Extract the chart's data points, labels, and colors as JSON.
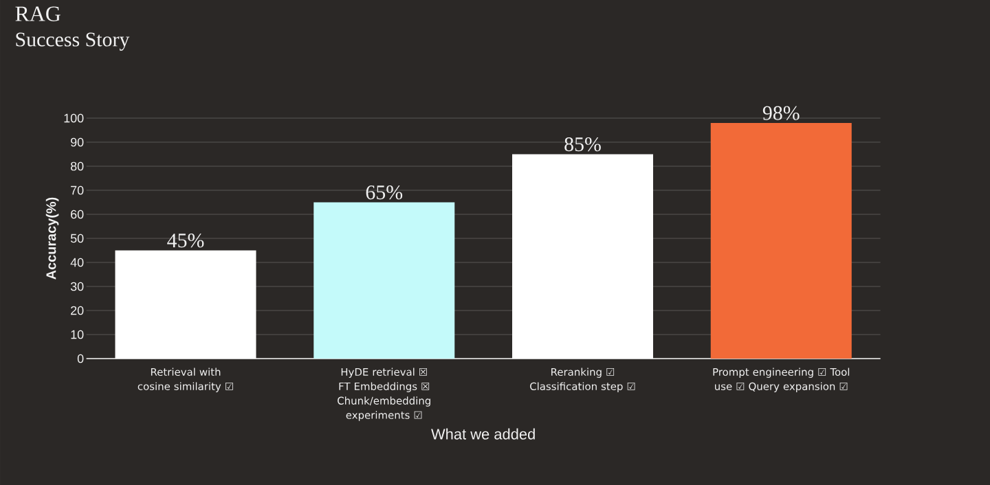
{
  "chart_data": {
    "type": "bar",
    "title": "RAG",
    "subtitle": "Success Story",
    "xlabel": "What we added",
    "ylabel": "Accuracy(%)",
    "categories": [
      "Retrieval with cosine similarity ☑",
      "HyDE retrieval ☒ FT Embeddings ☒ Chunk/embedding experiments ☑",
      "Reranking ☑ Classification step ☑",
      "Prompt engineering ☑ Tool use ☑ Query expansion ☑"
    ],
    "values": [
      45,
      65,
      85,
      98
    ],
    "colors": [
      "#ffffff",
      "#c4fafa",
      "#ffffff",
      "#f26a38"
    ],
    "value_labels": [
      "45%",
      "65%",
      "85%",
      "98%"
    ],
    "ylim": [
      0,
      100
    ],
    "yticks": [
      0,
      10,
      20,
      30,
      40,
      50,
      60,
      70,
      80,
      90,
      100
    ],
    "grid": "y"
  }
}
